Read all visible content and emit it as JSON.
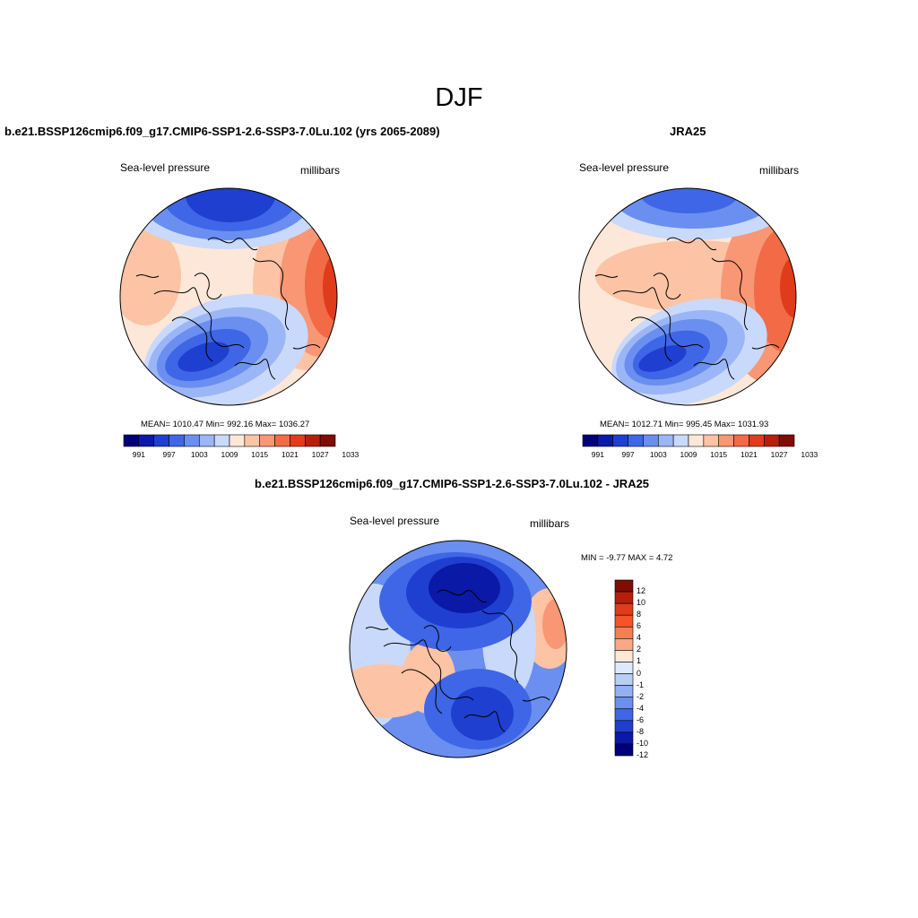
{
  "figure": {
    "title": "DJF"
  },
  "panels": [
    {
      "title": "b.e21.BSSP126cmip6.f09_g17.CMIP6-SSP1-2.6-SSP3-7.0Lu.102 (yrs 2065-2089)",
      "left_label": "Sea-level pressure",
      "right_label": "millibars",
      "stats": {
        "mean": "1010.47",
        "min": "992.16",
        "max": "1036.27"
      },
      "stats_text": "MEAN= 1010.47  Min= 992.16  Max= 1036.27"
    },
    {
      "title": "JRA25",
      "left_label": "Sea-level pressure",
      "right_label": "millibars",
      "stats": {
        "mean": "1012.71",
        "min": "995.45",
        "max": "1031.93"
      },
      "stats_text": "MEAN= 1012.71  Min= 995.45  Max= 1031.93"
    },
    {
      "title": "b.e21.BSSP126cmip6.f09_g17.CMIP6-SSP1-2.6-SSP3-7.0Lu.102 - JRA25",
      "left_label": "Sea-level pressure",
      "right_label": "millibars",
      "stats": {
        "min": "-9.77",
        "max": "4.72"
      },
      "stats_text": "MIN =  -9.77 MAX =   4.72"
    }
  ],
  "colorbar_abs": {
    "colors": [
      "#00007a",
      "#0a19a6",
      "#1f3fd0",
      "#3e66e6",
      "#6a8ff0",
      "#9bb6f6",
      "#c8d9fb",
      "#fce7d8",
      "#fcc3a5",
      "#f99673",
      "#f26a46",
      "#e03b1b",
      "#b51f0c",
      "#7f0d05"
    ],
    "tick_labels": [
      "991",
      "997",
      "1003",
      "1009",
      "1015",
      "1021",
      "1027",
      "1033"
    ]
  },
  "colorbar_diff": {
    "colors": [
      "#7f0d05",
      "#b51f0c",
      "#e03b1b",
      "#f5532a",
      "#f77d52",
      "#f9a784",
      "#fce7d8",
      "#ddeafd",
      "#b8cef9",
      "#92b0f4",
      "#6a8ff0",
      "#3e66e6",
      "#1f3fd0",
      "#0a19a6",
      "#00007a"
    ],
    "tick_labels": [
      "12",
      "10",
      "8",
      "6",
      "4",
      "2",
      "1",
      "0",
      "-1",
      "-2",
      "-4",
      "-6",
      "-8",
      "-10",
      "-12"
    ]
  }
}
